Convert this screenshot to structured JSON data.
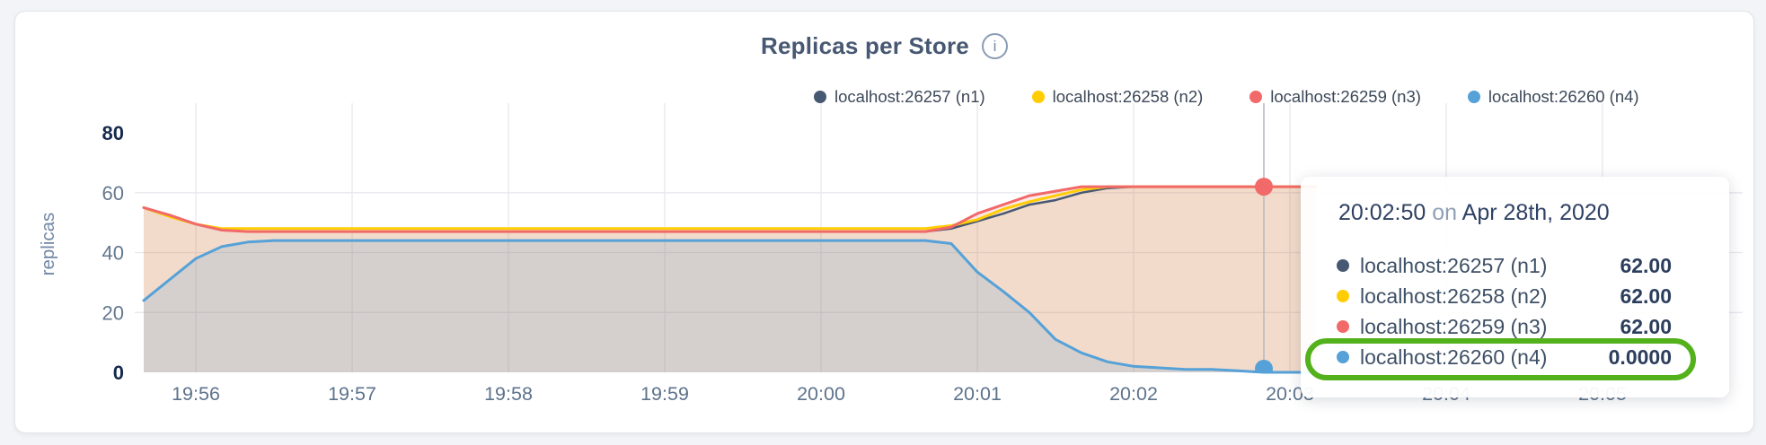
{
  "header": {
    "title": "Replicas per Store",
    "info_glyph": "i"
  },
  "legend": {
    "items": [
      {
        "label": "localhost:26257 (n1)",
        "color": "#475872"
      },
      {
        "label": "localhost:26258 (n2)",
        "color": "#ffcd02"
      },
      {
        "label": "localhost:26259 (n3)",
        "color": "#f16969"
      },
      {
        "label": "localhost:26260 (n4)",
        "color": "#55a1d8"
      }
    ]
  },
  "tooltip": {
    "time": "20:02:50",
    "on_word": "on",
    "date": "Apr 28th, 2020",
    "rows": [
      {
        "label": "localhost:26257 (n1)",
        "value": "62.00",
        "color": "#475872"
      },
      {
        "label": "localhost:26258 (n2)",
        "value": "62.00",
        "color": "#ffcd02"
      },
      {
        "label": "localhost:26259 (n3)",
        "value": "62.00",
        "color": "#f16969"
      },
      {
        "label": "localhost:26260 (n4)",
        "value": "0.0000",
        "color": "#55a1d8"
      }
    ],
    "highlight_color": "#53b11c"
  },
  "colors": {
    "grid": "#e7e8ee",
    "hover_line": "#b7bbc3",
    "tick_dark": "#152a4d",
    "tick_light": "#64788f",
    "x_tick": "#5d738c",
    "axis_label": "#7188a6"
  },
  "chart_data": {
    "type": "area",
    "title": "Replicas per Store",
    "xlabel": "",
    "ylabel": "replicas",
    "ylim": [
      0,
      80
    ],
    "y_ticks": [
      0,
      20,
      40,
      60,
      80
    ],
    "x_ticks": [
      "19:56",
      "19:57",
      "19:58",
      "19:59",
      "20:00",
      "20:01",
      "20:02",
      "20:03",
      "20:04",
      "20:05"
    ],
    "grid": true,
    "legend_position": "top-right",
    "x_start_time": "19:55:40",
    "x_start_seconds": -20,
    "x_step_seconds": 10,
    "series": [
      {
        "id": "n1",
        "name": "localhost:26257 (n1)",
        "color": "#475872",
        "fill": "rgba(71,88,114,0.07)",
        "line_width": 2.5,
        "values": [
          55,
          52,
          49.5,
          47.5,
          47,
          47,
          47,
          47,
          47,
          47,
          47,
          47,
          47,
          47,
          47,
          47,
          47,
          47,
          47,
          47,
          47,
          47,
          47,
          47,
          47,
          47,
          47,
          47,
          47,
          47,
          47,
          48,
          50.5,
          53,
          56,
          57.5,
          60,
          61.5,
          62,
          62,
          62,
          62,
          62,
          62,
          62,
          62
        ]
      },
      {
        "id": "n2",
        "name": "localhost:26258 (n2)",
        "color": "#ffcd02",
        "fill": "rgba(255,205,2,0.10)",
        "line_width": 3,
        "values": [
          55,
          52,
          49.5,
          48,
          48,
          48,
          48,
          48,
          48,
          48,
          48,
          48,
          48,
          48,
          48,
          48,
          48,
          48,
          48,
          48,
          48,
          48,
          48,
          48,
          48,
          48,
          48,
          48,
          48,
          48,
          48,
          49,
          51,
          54.5,
          57,
          59,
          61,
          62,
          62,
          62,
          62,
          62,
          62,
          62,
          62,
          62
        ]
      },
      {
        "id": "n3",
        "name": "localhost:26259 (n3)",
        "color": "#f16969",
        "fill": "rgba(241,105,105,0.15)",
        "line_width": 3,
        "values": [
          55,
          52.5,
          49.5,
          47.5,
          47,
          47,
          47,
          47,
          47,
          47,
          47,
          47,
          47,
          47,
          47,
          47,
          47,
          47,
          47,
          47,
          47,
          47,
          47,
          47,
          47,
          47,
          47,
          47,
          47,
          47,
          47,
          48.5,
          53,
          56,
          59,
          60.5,
          62,
          62,
          62,
          62,
          62,
          62,
          62,
          62,
          62,
          62
        ]
      },
      {
        "id": "n4",
        "name": "localhost:26260 (n4)",
        "color": "#55a1d8",
        "fill": "rgba(85,161,216,0.18)",
        "line_width": 3,
        "values": [
          24,
          31,
          38,
          42,
          43.5,
          44,
          44,
          44,
          44,
          44,
          44,
          44,
          44,
          44,
          44,
          44,
          44,
          44,
          44,
          44,
          44,
          44,
          44,
          44,
          44,
          44,
          44,
          44,
          44,
          44,
          44,
          43,
          33.5,
          27,
          20,
          11,
          6.5,
          3.5,
          2,
          1.5,
          1,
          1,
          0.5,
          0,
          0,
          0
        ]
      }
    ],
    "hover": {
      "time": "20:02:50",
      "index": 43,
      "dots": [
        {
          "series": "n3",
          "value": 62,
          "color": "#f16969"
        },
        {
          "series": "n4",
          "value": 0,
          "color": "#55a1d8"
        }
      ]
    }
  }
}
